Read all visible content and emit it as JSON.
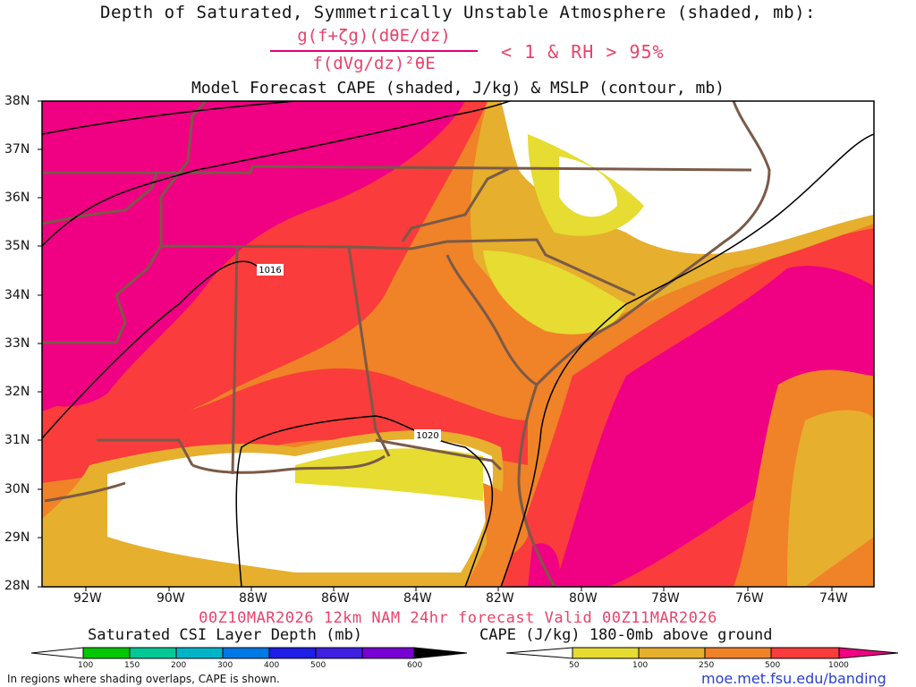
{
  "header": {
    "title": "Depth of Saturated, Symmetrically Unstable Atmosphere (shaded, mb):",
    "numerator": "g(f+ζg)(dθE/dz)",
    "denominator": "f(dVg/dz)²θE",
    "condition": "< 1 & RH > 95%",
    "subtitle": "Model Forecast CAPE (shaded, J/kg) & MSLP (contour, mb)"
  },
  "axes": {
    "lat_labels": [
      "38N",
      "37N",
      "36N",
      "35N",
      "34N",
      "33N",
      "32N",
      "31N",
      "30N",
      "29N",
      "28N"
    ],
    "lon_labels": [
      "92W",
      "90W",
      "88W",
      "86W",
      "84W",
      "82W",
      "80W",
      "78W",
      "76W",
      "74W"
    ]
  },
  "isobars": {
    "labels": [
      "1016",
      "1020"
    ]
  },
  "valid": "00Z10MAR2026 12km NAM 24hr forecast Valid 00Z11MAR2026",
  "legend_csi": {
    "title": "Saturated CSI Layer Depth (mb)",
    "ticks": [
      "100",
      "150",
      "200",
      "300",
      "400",
      "500",
      "600"
    ],
    "colors": [
      "#ffffff",
      "#00c800",
      "#00c896",
      "#00b4c8",
      "#0078e6",
      "#1e1ee6",
      "#7800d2",
      "#000000"
    ]
  },
  "legend_cape": {
    "title": "CAPE (J/kg) 180-0mb above ground",
    "ticks": [
      "50",
      "100",
      "250",
      "500",
      "1000"
    ],
    "colors": [
      "#ffffff",
      "#e6dc32",
      "#e6af2d",
      "#f08228",
      "#fa3c3c",
      "#f00082"
    ]
  },
  "footer": {
    "note": "In regions where shading overlaps, CAPE is shown.",
    "url": "moe.met.fsu.edu/banding"
  }
}
